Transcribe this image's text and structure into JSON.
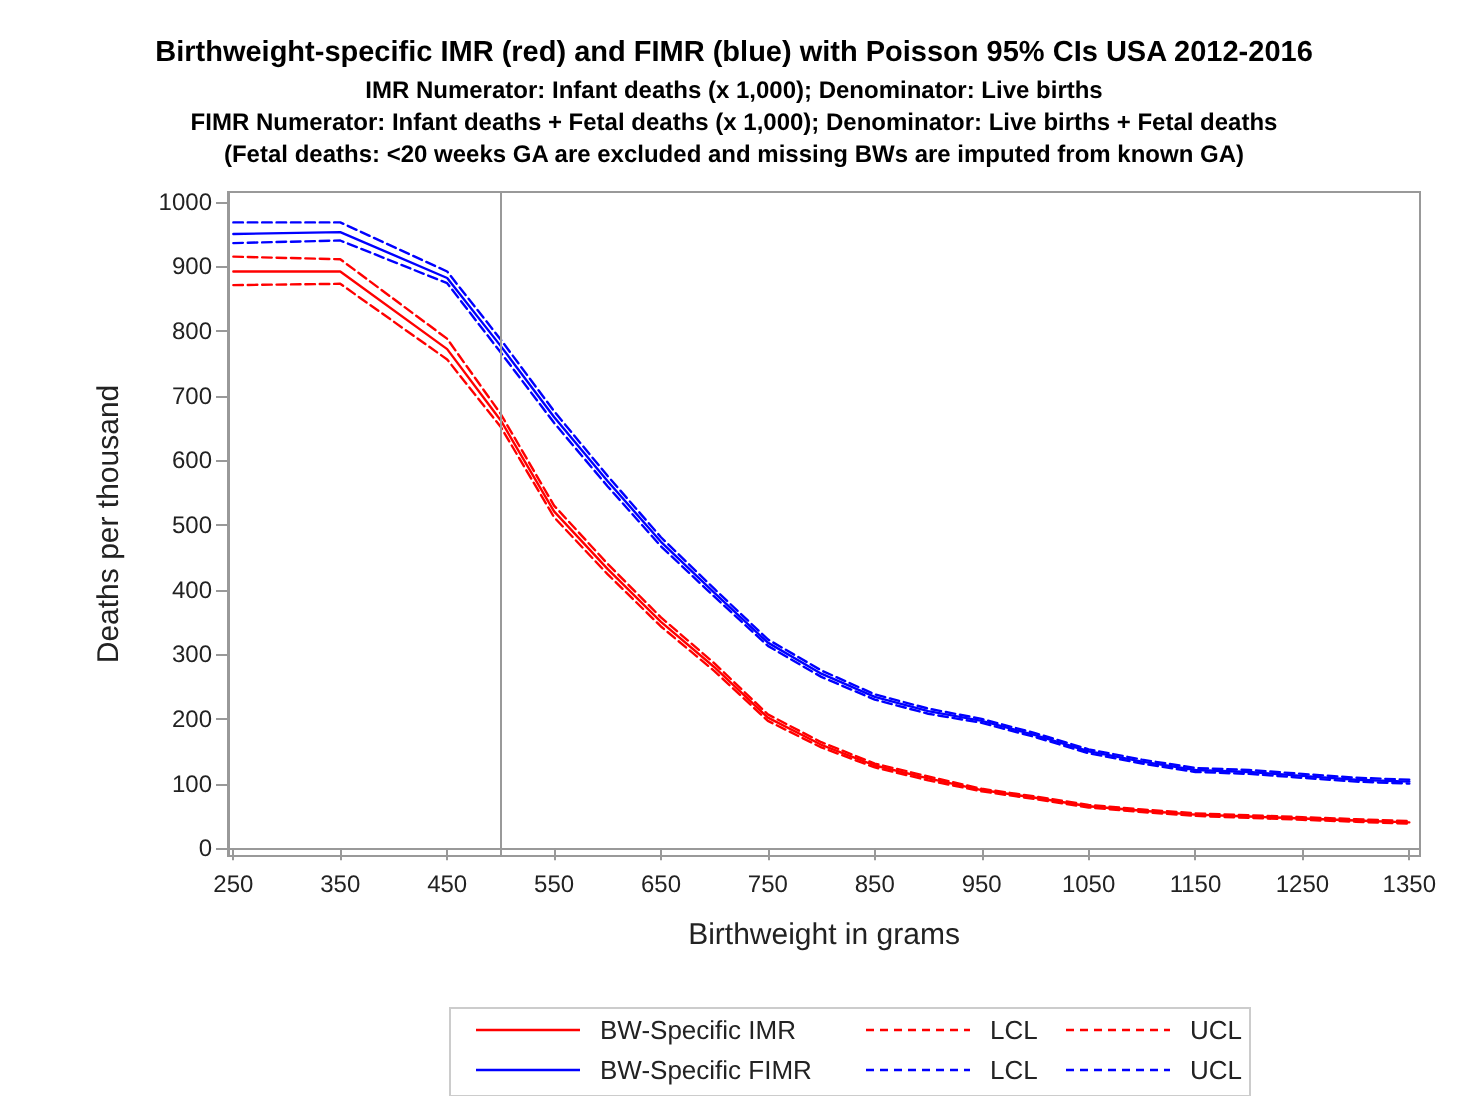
{
  "chart_data": {
    "type": "line",
    "title": "Birthweight-specific IMR (red) and FIMR (blue) with Poisson 95% CIs USA 2012-2016",
    "subtitle": "IMR Numerator: Infant deaths (x 1,000); Denominator: Live births\nFIMR Numerator: Infant deaths + Fetal deaths (x 1,000); Denominator: Live births + Fetal deaths\n(Fetal deaths: <20 weeks GA are excluded and missing BWs are imputed from known GA)",
    "xlabel": "Birthweight in grams",
    "ylabel": "Deaths per thousand",
    "x": [
      250,
      350,
      450,
      500,
      550,
      600,
      650,
      700,
      750,
      800,
      850,
      900,
      950,
      1000,
      1050,
      1100,
      1150,
      1200,
      1250,
      1300,
      1350
    ],
    "series": [
      {
        "name": "BW-Specific IMR",
        "color": "#ff0000",
        "line_style": "solid",
        "values": [
          892,
          892,
          772,
          662,
          521,
          432,
          350,
          280,
          202,
          160,
          128,
          108,
          90,
          78,
          65,
          58,
          52,
          49,
          46,
          43,
          40
        ]
      },
      {
        "name": "LCL",
        "color": "#ff0000",
        "line_style": "dashed",
        "values": [
          871,
          873,
          756,
          652,
          512,
          424,
          343,
          274,
          197,
          156,
          125,
          105,
          88,
          76,
          63,
          56,
          50,
          47,
          44,
          41,
          38
        ]
      },
      {
        "name": "UCL",
        "color": "#ff0000",
        "line_style": "dashed",
        "values": [
          915,
          911,
          788,
          672,
          530,
          440,
          357,
          286,
          207,
          164,
          131,
          111,
          92,
          80,
          67,
          60,
          54,
          51,
          48,
          45,
          42
        ]
      },
      {
        "name": "BW-Specific FIMR",
        "color": "#0000ff",
        "line_style": "solid",
        "values": [
          950,
          953,
          882,
          777,
          667,
          568,
          474,
          395,
          318,
          270,
          234,
          212,
          197,
          175,
          150,
          134,
          121,
          118,
          112,
          106,
          103
        ]
      },
      {
        "name": "LCL",
        "color": "#0000ff",
        "line_style": "dashed",
        "values": [
          936,
          940,
          874,
          767,
          658,
          560,
          467,
          389,
          313,
          265,
          230,
          208,
          194,
          172,
          147,
          131,
          118,
          115,
          109,
          103,
          100
        ]
      },
      {
        "name": "UCL",
        "color": "#0000ff",
        "line_style": "dashed",
        "values": [
          968,
          968,
          892,
          787,
          676,
          576,
          481,
          401,
          323,
          275,
          238,
          216,
          200,
          178,
          153,
          137,
          124,
          121,
          115,
          109,
          106
        ]
      }
    ],
    "xlim": [
      245,
      1360
    ],
    "xticks": [
      250,
      350,
      450,
      550,
      650,
      750,
      850,
      950,
      1050,
      1150,
      1250,
      1350
    ],
    "ylim": [
      -12,
      1015
    ],
    "yticks": [
      0,
      100,
      200,
      300,
      400,
      500,
      600,
      700,
      800,
      900,
      1000
    ],
    "ref_lines": [
      {
        "axis": "x",
        "value": 500,
        "color": "#999999"
      }
    ],
    "legend": "bottom",
    "marker": "none"
  }
}
